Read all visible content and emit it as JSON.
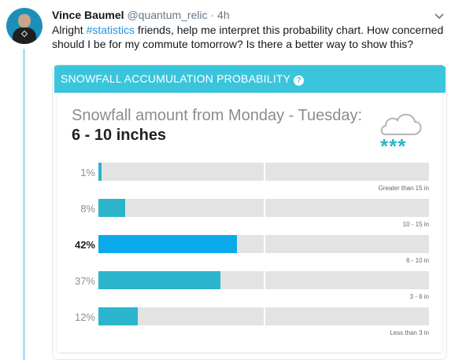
{
  "tweet": {
    "name": "Vince Baumel",
    "handle": "@quantum_relic",
    "time": "· 4h",
    "text_before": "Alright ",
    "hashtag": "#statistics",
    "text_after": " friends, help me interpret this probability chart. How concerned should I be for my commute tomorrow? Is there a better way to show this?",
    "caret_icon": "chevron-down-icon"
  },
  "card": {
    "header": "SNOWFALL ACCUMULATION PROBABILITY",
    "help_glyph": "?",
    "subtitle": "Snowfall amount from Monday - Tuesday:",
    "value": "6 - 10 inches",
    "weather_icon": "snow-cloud-icon",
    "snow_glyphs": "***",
    "colors": {
      "header": "#3bc5dc",
      "bar": "#2bb5cc",
      "bar_selected": "#0aa9ec",
      "track": "#e3e3e3"
    }
  },
  "chart_data": {
    "type": "bar",
    "orientation": "horizontal",
    "categories": [
      "Greater than 15 in",
      "10 - 15 in",
      "6 - 10 in",
      "3 - 6 in",
      "Less than 3 in"
    ],
    "value_labels": [
      "1%",
      "8%",
      "42%",
      "37%",
      "12%"
    ],
    "values": [
      1,
      8,
      42,
      37,
      12
    ],
    "highlighted": "6 - 10 in",
    "xlim": [
      0,
      100
    ],
    "title": "SNOWFALL ACCUMULATION PROBABILITY"
  }
}
